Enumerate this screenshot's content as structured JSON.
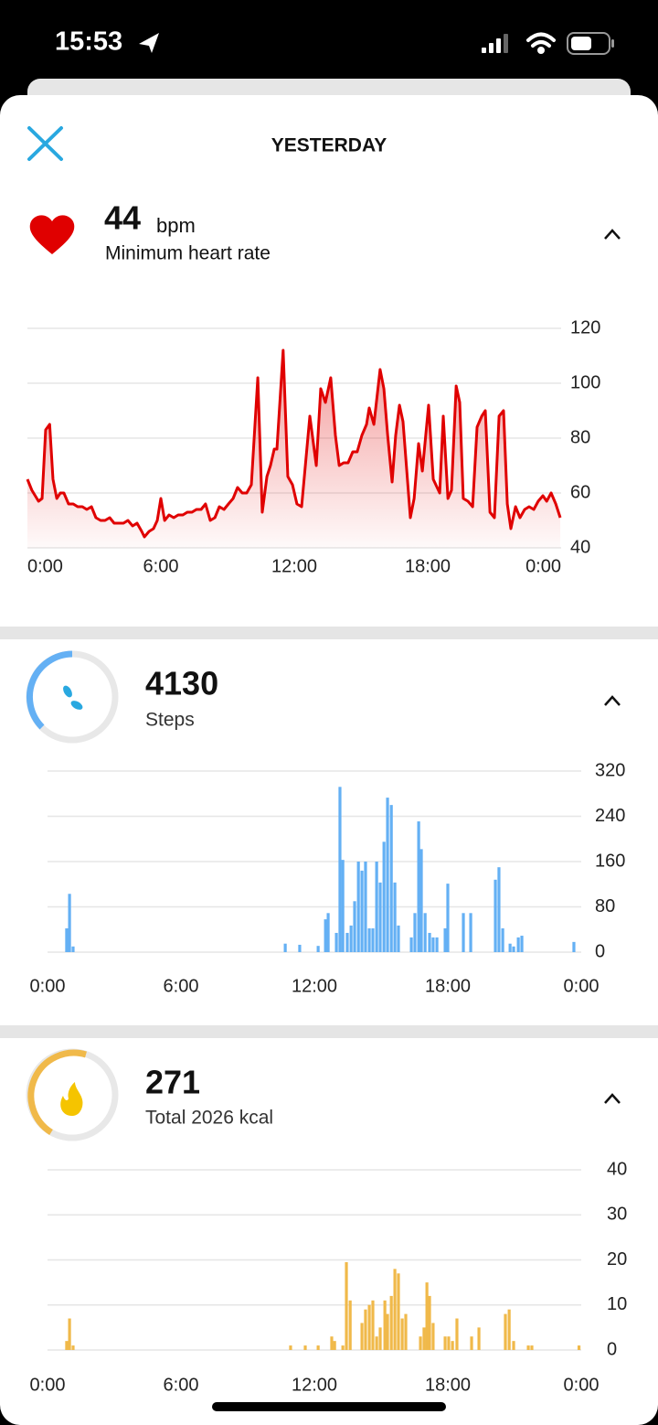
{
  "status_bar": {
    "time": "15:53"
  },
  "header": {
    "title": "YESTERDAY"
  },
  "sections": [
    {
      "value": 44,
      "unit": "bpm",
      "label": "Minimum heart rate"
    },
    {
      "value": 4130,
      "label": "Steps"
    },
    {
      "value": 271,
      "label": "Total 2026 kcal"
    }
  ],
  "chart_data": [
    {
      "type": "line",
      "color": "#e00000",
      "xlim": [
        0,
        24
      ],
      "ylim": [
        40,
        120
      ],
      "xticks": [
        {
          "value": 0,
          "label": "0:00"
        },
        {
          "value": 6,
          "label": "6:00"
        },
        {
          "value": 12,
          "label": "12:00"
        },
        {
          "value": 18,
          "label": "18:00"
        },
        {
          "value": 24,
          "label": "0:00"
        }
      ],
      "yticks": [
        40,
        60,
        80,
        100,
        120
      ],
      "grid": true,
      "x": [
        0,
        0.2,
        0.5,
        0.66,
        0.82,
        1.0,
        1.15,
        1.32,
        1.48,
        1.64,
        1.85,
        2.06,
        2.26,
        2.47,
        2.67,
        2.88,
        3.08,
        3.29,
        3.49,
        3.7,
        3.9,
        4.11,
        4.32,
        4.52,
        4.73,
        4.93,
        5.14,
        5.26,
        5.47,
        5.67,
        5.84,
        6.0,
        6.17,
        6.37,
        6.58,
        6.78,
        6.99,
        7.19,
        7.4,
        7.6,
        7.81,
        8.01,
        8.22,
        8.43,
        8.63,
        8.84,
        9.04,
        9.25,
        9.45,
        9.66,
        9.86,
        10.07,
        10.36,
        10.56,
        10.77,
        10.93,
        11.1,
        11.22,
        11.5,
        11.71,
        11.92,
        12.12,
        12.33,
        12.7,
        12.99,
        13.19,
        13.4,
        13.64,
        13.85,
        14.02,
        14.22,
        14.42,
        14.63,
        14.83,
        15.04,
        15.25,
        15.37,
        15.58,
        15.86,
        16.03,
        16.2,
        16.4,
        16.56,
        16.73,
        16.89,
        17.22,
        17.39,
        17.59,
        17.76,
        18.04,
        18.25,
        18.54,
        18.7,
        18.91,
        19.07,
        19.28,
        19.44,
        19.6,
        19.81,
        20.02,
        20.22,
        20.43,
        20.59,
        20.8,
        21.0,
        21.21,
        21.41,
        21.58,
        21.74,
        21.95,
        22.15,
        22.36,
        22.56,
        22.77,
        22.97,
        23.18,
        23.35,
        23.55,
        23.76,
        23.96
      ],
      "values": [
        65,
        61,
        57,
        58,
        83,
        85,
        65,
        58,
        60,
        60,
        56,
        56,
        55,
        55,
        54,
        55,
        51,
        50,
        50,
        51,
        49,
        49,
        49,
        50,
        48,
        49,
        46,
        44,
        46,
        47,
        50,
        58,
        50,
        52,
        51,
        52,
        52,
        53,
        53,
        54,
        54,
        56,
        50,
        51,
        55,
        54,
        56,
        58,
        62,
        60,
        60,
        63,
        102,
        53,
        66,
        70,
        76,
        76,
        112,
        66,
        63,
        56,
        55,
        88,
        70,
        98,
        93,
        102,
        81,
        70,
        71,
        71,
        75,
        75,
        81,
        85,
        91,
        85,
        105,
        98,
        81,
        64,
        81,
        92,
        86,
        51,
        58,
        78,
        68,
        92,
        65,
        60,
        88,
        58,
        61,
        99,
        93,
        58,
        57,
        55,
        84,
        88,
        90,
        53,
        51,
        88,
        90,
        56,
        47,
        55,
        51,
        54,
        55,
        54,
        57,
        59,
        57,
        60,
        56,
        51
      ]
    },
    {
      "type": "bar",
      "color": "#64b0f4",
      "xlim": [
        0,
        24
      ],
      "ylim": [
        0,
        320
      ],
      "xticks": [
        {
          "value": 0,
          "label": "0:00"
        },
        {
          "value": 6,
          "label": "6:00"
        },
        {
          "value": 12,
          "label": "12:00"
        },
        {
          "value": 18,
          "label": "18:00"
        },
        {
          "value": 24,
          "label": "0:00"
        }
      ],
      "yticks": [
        0,
        80,
        160,
        240,
        320
      ],
      "grid": true,
      "x": [
        0.86,
        0.99,
        1.15,
        10.69,
        11.34,
        12.17,
        12.5,
        12.62,
        12.99,
        13.15,
        13.28,
        13.48,
        13.65,
        13.81,
        13.98,
        14.14,
        14.3,
        14.47,
        14.63,
        14.8,
        14.96,
        15.13,
        15.29,
        15.46,
        15.62,
        15.78,
        16.36,
        16.52,
        16.69,
        16.81,
        16.98,
        17.18,
        17.34,
        17.51,
        17.88,
        18.0,
        18.7,
        19.03,
        20.14,
        20.3,
        20.47,
        20.8,
        20.96,
        21.17,
        21.33,
        23.67
      ],
      "values": [
        42,
        103,
        10,
        15,
        13,
        11,
        58,
        69,
        34,
        292,
        163,
        34,
        47,
        90,
        160,
        144,
        160,
        42,
        42,
        160,
        123,
        195,
        273,
        260,
        123,
        47,
        26,
        69,
        231,
        182,
        69,
        34,
        26,
        26,
        42,
        121,
        69,
        69,
        128,
        150,
        42,
        15,
        10,
        26,
        29,
        18
      ]
    },
    {
      "type": "bar",
      "color": "#f0b94a",
      "xlim": [
        0,
        24
      ],
      "ylim": [
        0,
        40
      ],
      "xticks": [
        {
          "value": 0,
          "label": "0:00"
        },
        {
          "value": 6,
          "label": "6:00"
        },
        {
          "value": 12,
          "label": "12:00"
        },
        {
          "value": 18,
          "label": "18:00"
        },
        {
          "value": 24,
          "label": "0:00"
        }
      ],
      "yticks": [
        0,
        10,
        20,
        30,
        40
      ],
      "grid": true,
      "x": [
        0.86,
        0.99,
        1.15,
        10.93,
        11.59,
        12.17,
        12.78,
        12.91,
        13.28,
        13.44,
        13.61,
        14.14,
        14.3,
        14.47,
        14.63,
        14.8,
        14.96,
        15.17,
        15.29,
        15.46,
        15.62,
        15.78,
        15.95,
        16.11,
        16.77,
        16.93,
        17.06,
        17.18,
        17.34,
        17.88,
        18.04,
        18.21,
        18.41,
        19.07,
        19.4,
        20.59,
        20.76,
        20.96,
        21.62,
        21.78,
        23.9
      ],
      "values": [
        2,
        7,
        1,
        1,
        1,
        1,
        3,
        2,
        1,
        19.5,
        11,
        6,
        9,
        10,
        11,
        3,
        5,
        11,
        8,
        12,
        18,
        17,
        7,
        8,
        3,
        5,
        15,
        12,
        6,
        3,
        3,
        2,
        7,
        3,
        5,
        8,
        9,
        2,
        1,
        1,
        1
      ]
    }
  ]
}
